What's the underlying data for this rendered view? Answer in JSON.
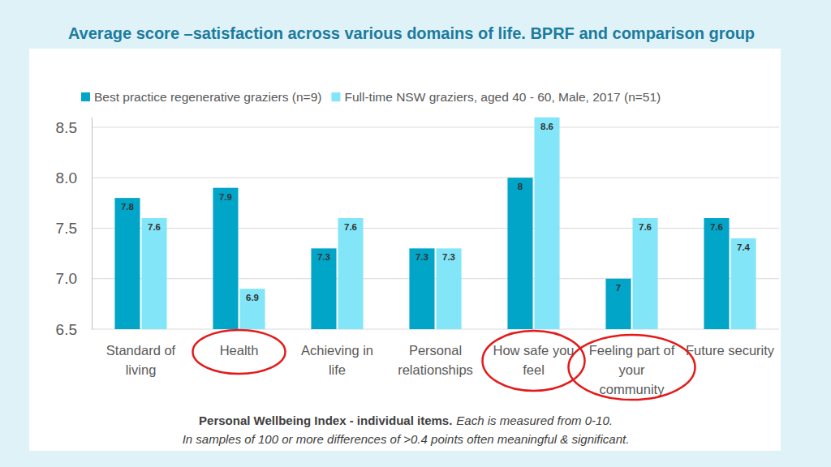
{
  "chart_data": {
    "type": "bar",
    "title": "Average score –satisfaction across various domains of life. BPRF and comparison group",
    "categories": [
      "Standard of living",
      "Health",
      "Achieving in life",
      "Personal relationships",
      "How safe you feel",
      "Feeling part of your community",
      "Future security"
    ],
    "series": [
      {
        "name": "Best practice regenerative graziers (n=9)",
        "color": "#00a5c8",
        "values": [
          7.8,
          7.9,
          7.3,
          7.3,
          8.0,
          7.0,
          7.6
        ]
      },
      {
        "name": "Full-time NSW graziers, aged 40 - 60, Male, 2017 (n=51)",
        "color": "#82e6f8",
        "values": [
          7.6,
          6.9,
          7.6,
          7.3,
          8.6,
          7.6,
          7.4
        ]
      }
    ],
    "ylim": [
      6.5,
      8.6
    ],
    "yticks": [
      6.5,
      {
        "value": 7,
        "label": "7.0"
      },
      7.5,
      {
        "value": 8,
        "label": "8.0"
      },
      8.5
    ],
    "grid": true,
    "legend": "top",
    "data_labels": true,
    "annotations": [
      "Personal Wellbeing Index - individual items.",
      "Each is measured from 0-10.",
      "In samples of 100 or more differences of >0.4 points often meaningful & significant."
    ]
  }
}
